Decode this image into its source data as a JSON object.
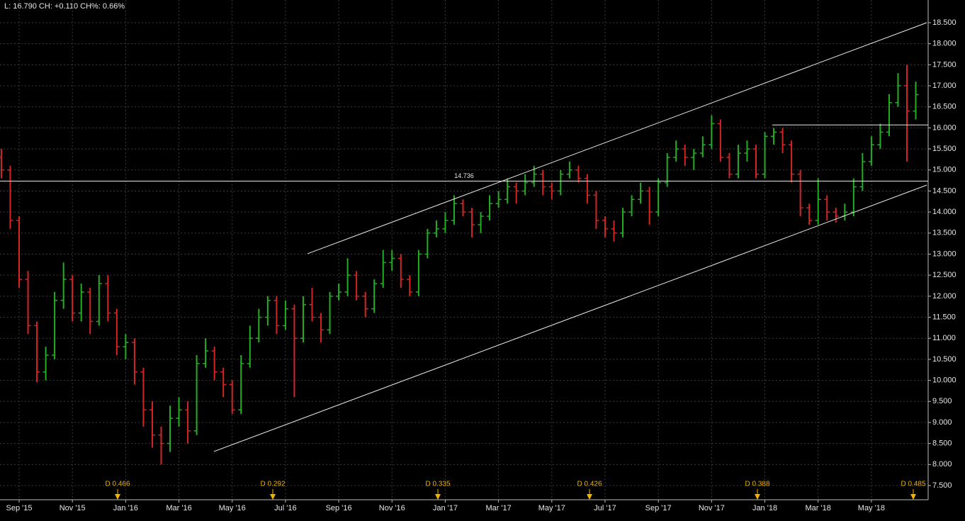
{
  "chart_data": {
    "type": "ohlc",
    "title": "L: 16.790 CH: +0.110 CH%: 0.66%",
    "up_color": "#22b022",
    "down_color": "#d42424",
    "grid": true,
    "categories": [
      null,
      null,
      "Sep '15",
      null,
      null,
      null,
      null,
      null,
      "Nov '15",
      null,
      null,
      null,
      null,
      null,
      "Jan '16",
      null,
      null,
      null,
      null,
      null,
      "Mar '16",
      null,
      null,
      null,
      null,
      null,
      "May '16",
      null,
      null,
      null,
      null,
      null,
      "Jul '16",
      null,
      null,
      null,
      null,
      null,
      "Sep '16",
      null,
      null,
      null,
      null,
      null,
      "Nov '16",
      null,
      null,
      null,
      null,
      null,
      "Jan '17",
      null,
      null,
      null,
      null,
      null,
      "Mar '17",
      null,
      null,
      null,
      null,
      null,
      "May '17",
      null,
      null,
      null,
      null,
      null,
      "Jul '17",
      null,
      null,
      null,
      null,
      null,
      "Sep '17",
      null,
      null,
      null,
      null,
      null,
      "Nov '17",
      null,
      null,
      null,
      null,
      null,
      "Jan '18",
      null,
      null,
      null,
      null,
      null,
      "Mar '18",
      null,
      null,
      null,
      null,
      null,
      "May '18",
      null,
      null,
      null,
      null,
      null
    ],
    "ohlc": [
      [
        15.3,
        15.5,
        14.8,
        15.0
      ],
      [
        15.0,
        15.1,
        13.6,
        13.8
      ],
      [
        13.8,
        13.9,
        12.2,
        12.4
      ],
      [
        12.4,
        12.6,
        11.1,
        11.3
      ],
      [
        11.3,
        11.4,
        9.95,
        10.2
      ],
      [
        10.2,
        10.8,
        10.0,
        10.6
      ],
      [
        10.6,
        12.1,
        10.5,
        11.9
      ],
      [
        11.9,
        12.8,
        11.7,
        12.4
      ],
      [
        12.4,
        12.5,
        11.4,
        11.6
      ],
      [
        11.6,
        12.3,
        11.4,
        12.1
      ],
      [
        12.1,
        12.2,
        11.1,
        11.4
      ],
      [
        11.4,
        12.5,
        11.3,
        12.3
      ],
      [
        12.3,
        12.5,
        11.4,
        11.6
      ],
      [
        11.6,
        11.7,
        10.6,
        10.8
      ],
      [
        10.8,
        11.1,
        10.5,
        10.9
      ],
      [
        10.9,
        11.0,
        9.9,
        10.2
      ],
      [
        10.2,
        10.3,
        8.9,
        9.3
      ],
      [
        9.3,
        9.5,
        8.4,
        8.7
      ],
      [
        8.7,
        8.9,
        8.0,
        8.5
      ],
      [
        8.5,
        9.4,
        8.3,
        9.1
      ],
      [
        9.1,
        9.6,
        8.9,
        9.3
      ],
      [
        9.3,
        9.5,
        8.5,
        8.8
      ],
      [
        8.8,
        10.6,
        8.7,
        10.4
      ],
      [
        10.4,
        11.0,
        10.3,
        10.7
      ],
      [
        10.7,
        10.8,
        10.0,
        10.2
      ],
      [
        10.2,
        10.3,
        9.6,
        9.9
      ],
      [
        9.9,
        10.0,
        9.2,
        9.3
      ],
      [
        9.3,
        10.6,
        9.2,
        10.4
      ],
      [
        10.4,
        11.3,
        10.3,
        11.0
      ],
      [
        11.0,
        11.7,
        10.9,
        11.5
      ],
      [
        11.5,
        12.0,
        11.3,
        11.9
      ],
      [
        11.9,
        12.0,
        11.1,
        11.3
      ],
      [
        11.3,
        11.9,
        11.2,
        11.7
      ],
      [
        11.7,
        11.8,
        9.6,
        11.0
      ],
      [
        11.0,
        12.0,
        10.9,
        11.8
      ],
      [
        11.8,
        12.2,
        11.4,
        11.5
      ],
      [
        11.5,
        11.6,
        10.9,
        11.2
      ],
      [
        11.2,
        12.1,
        11.1,
        12.0
      ],
      [
        12.0,
        12.3,
        11.9,
        12.1
      ],
      [
        12.1,
        12.9,
        12.0,
        12.5
      ],
      [
        12.5,
        12.6,
        11.9,
        12.0
      ],
      [
        12.0,
        12.1,
        11.5,
        11.7
      ],
      [
        11.7,
        12.4,
        11.6,
        12.3
      ],
      [
        12.3,
        13.1,
        12.2,
        12.8
      ],
      [
        12.8,
        13.1,
        12.6,
        12.9
      ],
      [
        12.9,
        13.0,
        12.2,
        12.4
      ],
      [
        12.4,
        12.5,
        12.0,
        12.1
      ],
      [
        12.1,
        13.1,
        12.0,
        13.0
      ],
      [
        13.0,
        13.6,
        12.9,
        13.5
      ],
      [
        13.5,
        13.8,
        13.4,
        13.6
      ],
      [
        13.6,
        14.0,
        13.5,
        13.8
      ],
      [
        13.8,
        14.4,
        13.7,
        14.2
      ],
      [
        14.2,
        14.3,
        13.9,
        14.0
      ],
      [
        14.0,
        14.1,
        13.4,
        13.7
      ],
      [
        13.7,
        14.0,
        13.5,
        13.9
      ],
      [
        13.9,
        14.4,
        13.8,
        14.2
      ],
      [
        14.2,
        14.5,
        14.1,
        14.3
      ],
      [
        14.3,
        14.8,
        14.2,
        14.6
      ],
      [
        14.6,
        14.7,
        14.2,
        14.5
      ],
      [
        14.5,
        14.9,
        14.4,
        14.7
      ],
      [
        14.7,
        15.1,
        14.6,
        14.9
      ],
      [
        14.9,
        15.0,
        14.4,
        14.6
      ],
      [
        14.6,
        14.7,
        14.3,
        14.5
      ],
      [
        14.5,
        15.0,
        14.4,
        14.9
      ],
      [
        14.9,
        15.2,
        14.8,
        15.0
      ],
      [
        15.0,
        15.1,
        14.7,
        14.8
      ],
      [
        14.8,
        14.9,
        14.2,
        14.4
      ],
      [
        14.4,
        14.5,
        13.6,
        13.8
      ],
      [
        13.8,
        13.9,
        13.4,
        13.6
      ],
      [
        13.6,
        13.8,
        13.3,
        13.5
      ],
      [
        13.5,
        14.1,
        13.4,
        14.0
      ],
      [
        14.0,
        14.4,
        13.9,
        14.3
      ],
      [
        14.3,
        14.7,
        14.2,
        14.5
      ],
      [
        14.5,
        14.6,
        13.7,
        14.0
      ],
      [
        14.0,
        14.8,
        13.9,
        14.7
      ],
      [
        14.7,
        15.4,
        14.6,
        15.3
      ],
      [
        15.3,
        15.7,
        15.2,
        15.5
      ],
      [
        15.5,
        15.6,
        15.1,
        15.3
      ],
      [
        15.3,
        15.5,
        15.0,
        15.4
      ],
      [
        15.4,
        15.8,
        15.3,
        15.6
      ],
      [
        15.6,
        16.3,
        15.5,
        16.1
      ],
      [
        16.1,
        16.2,
        15.2,
        15.3
      ],
      [
        15.3,
        15.4,
        14.8,
        14.9
      ],
      [
        14.9,
        15.6,
        14.8,
        15.4
      ],
      [
        15.4,
        15.7,
        15.2,
        15.5
      ],
      [
        15.5,
        15.6,
        14.8,
        14.9
      ],
      [
        14.9,
        15.9,
        14.8,
        15.8
      ],
      [
        15.8,
        16.0,
        15.6,
        15.9
      ],
      [
        15.9,
        16.0,
        15.4,
        15.6
      ],
      [
        15.6,
        15.7,
        14.7,
        14.9
      ],
      [
        14.9,
        15.0,
        13.9,
        14.1
      ],
      [
        14.1,
        14.2,
        13.7,
        13.8
      ],
      [
        13.8,
        14.8,
        13.7,
        14.3
      ],
      [
        14.3,
        14.4,
        13.8,
        14.0
      ],
      [
        14.0,
        14.1,
        13.75,
        13.9
      ],
      [
        13.9,
        14.2,
        13.8,
        14.0
      ],
      [
        14.0,
        14.8,
        13.9,
        14.6
      ],
      [
        14.6,
        15.4,
        14.5,
        15.2
      ],
      [
        15.2,
        15.8,
        15.1,
        15.6
      ],
      [
        15.6,
        16.1,
        15.5,
        15.9
      ],
      [
        15.9,
        16.8,
        15.8,
        16.6
      ],
      [
        16.6,
        17.3,
        16.5,
        17.0
      ],
      [
        17.0,
        17.5,
        15.2,
        16.4
      ],
      [
        16.4,
        17.1,
        16.2,
        16.79
      ]
    ],
    "ylim": [
      7.5,
      18.5
    ],
    "yticks": [
      {
        "value": 7.5,
        "label": "7.500"
      },
      {
        "value": 8,
        "label": "8.000"
      },
      {
        "value": 8.5,
        "label": "8.500"
      },
      {
        "value": 9,
        "label": "9.000"
      },
      {
        "value": 9.5,
        "label": "9.500"
      },
      {
        "value": 10,
        "label": "10.000"
      },
      {
        "value": 10.5,
        "label": "10.500"
      },
      {
        "value": 11,
        "label": "11.000"
      },
      {
        "value": 11.5,
        "label": "11.500"
      },
      {
        "value": 12,
        "label": "12.000"
      },
      {
        "value": 12.5,
        "label": "12.500"
      },
      {
        "value": 13,
        "label": "13.000"
      },
      {
        "value": 13.5,
        "label": "13.500"
      },
      {
        "value": 14,
        "label": "14.000"
      },
      {
        "value": 14.5,
        "label": "14.500"
      },
      {
        "value": 15,
        "label": "15.000"
      },
      {
        "value": 15.5,
        "label": "15.500"
      },
      {
        "value": 16,
        "label": "16.000"
      },
      {
        "value": 16.5,
        "label": "16.500"
      },
      {
        "value": 17,
        "label": "17.000"
      },
      {
        "value": 17.5,
        "label": "17.500"
      },
      {
        "value": 18,
        "label": "18.000"
      },
      {
        "value": 18.5,
        "label": "18.500"
      }
    ],
    "reference_lines": [
      {
        "value": 14.736,
        "label": "14.736"
      },
      {
        "value": 16.07
      }
    ],
    "trendlines": [
      {
        "start": 13.01,
        "end": 18.5
      },
      {
        "start": 8.31,
        "end": 14.64
      }
    ],
    "dividends": [
      "D 0.466",
      "D 0.292",
      "D 0.335",
      "D 0.426",
      "D 0.388",
      "D 0.485"
    ]
  }
}
